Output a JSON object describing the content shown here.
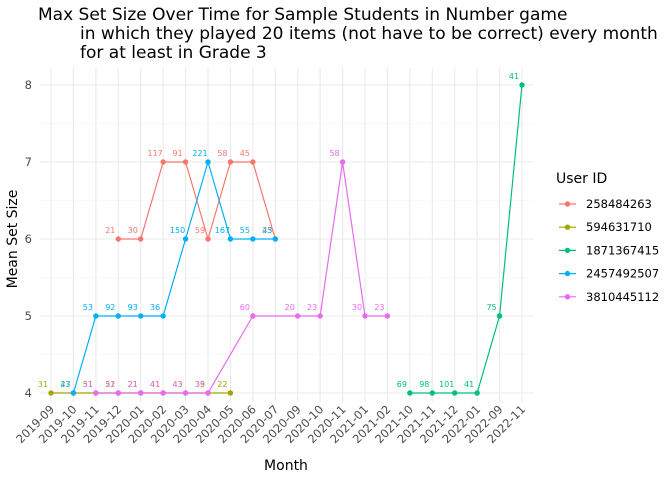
{
  "chart_data": {
    "type": "line",
    "title": [
      "Max Set Size Over Time for Sample Students in Number game",
      "in which they played 20 items (not have to be correct) every month",
      "for at least in Grade 3"
    ],
    "xlabel": "Month",
    "ylabel": "Mean Set Size",
    "categories": [
      "2019-09",
      "2019-10",
      "2019-11",
      "2019-12",
      "2020-01",
      "2020-02",
      "2020-03",
      "2020-04",
      "2020-05",
      "2020-06",
      "2020-07",
      "2020-09",
      "2020-10",
      "2020-11",
      "2021-01",
      "2021-02",
      "2021-10",
      "2021-11",
      "2021-12",
      "2022-01",
      "2022-09",
      "2022-11"
    ],
    "ylim": [
      3.85,
      8.2
    ],
    "yticks": [
      4,
      5,
      6,
      7,
      8
    ],
    "grid": true,
    "legend": {
      "title": "User ID",
      "position": "right"
    },
    "series": [
      {
        "name": "258484263",
        "color": "#F8766D",
        "points": [
          {
            "x": "2019-12",
            "y": 6,
            "label": "21"
          },
          {
            "x": "2020-01",
            "y": 6,
            "label": "30"
          },
          {
            "x": "2020-02",
            "y": 7,
            "label": "117"
          },
          {
            "x": "2020-03",
            "y": 7,
            "label": "91"
          },
          {
            "x": "2020-04",
            "y": 6,
            "label": "59"
          },
          {
            "x": "2020-05",
            "y": 7,
            "label": "58"
          },
          {
            "x": "2020-06",
            "y": 7,
            "label": "45"
          },
          {
            "x": "2020-07",
            "y": 6,
            "label": "25"
          }
        ]
      },
      {
        "name": "594631710",
        "color": "#A3A500",
        "points": [
          {
            "x": "2019-09",
            "y": 4,
            "label": "31"
          },
          {
            "x": "2019-10",
            "y": 4,
            "label": "27"
          },
          {
            "x": "2019-11",
            "y": 4,
            "label": "51"
          },
          {
            "x": "2019-12",
            "y": 4,
            "label": "51"
          },
          {
            "x": "2020-01",
            "y": 4,
            "label": "21"
          },
          {
            "x": "2020-02",
            "y": 4,
            "label": "41"
          },
          {
            "x": "2020-03",
            "y": 4,
            "label": "43"
          },
          {
            "x": "2020-04",
            "y": 4,
            "label": "39"
          },
          {
            "x": "2020-05",
            "y": 4,
            "label": "22"
          }
        ]
      },
      {
        "name": "1871367415",
        "color": "#00BF7D",
        "points": [
          {
            "x": "2021-10",
            "y": 4,
            "label": "69"
          },
          {
            "x": "2021-11",
            "y": 4,
            "label": "98"
          },
          {
            "x": "2021-12",
            "y": 4,
            "label": "101"
          },
          {
            "x": "2022-01",
            "y": 4,
            "label": "41"
          },
          {
            "x": "2022-09",
            "y": 5,
            "label": "75"
          },
          {
            "x": "2022-11",
            "y": 8,
            "label": "41"
          }
        ]
      },
      {
        "name": "2457492507",
        "color": "#00B0F6",
        "points": [
          {
            "x": "2019-10",
            "y": 4,
            "label": "43"
          },
          {
            "x": "2019-11",
            "y": 5,
            "label": "53"
          },
          {
            "x": "2019-12",
            "y": 5,
            "label": "92"
          },
          {
            "x": "2020-01",
            "y": 5,
            "label": "93"
          },
          {
            "x": "2020-02",
            "y": 5,
            "label": "36"
          },
          {
            "x": "2020-03",
            "y": 6,
            "label": "150"
          },
          {
            "x": "2020-04",
            "y": 7,
            "label": "221"
          },
          {
            "x": "2020-05",
            "y": 6,
            "label": "167"
          },
          {
            "x": "2020-06",
            "y": 6,
            "label": "55"
          },
          {
            "x": "2020-07",
            "y": 6,
            "label": "43"
          }
        ]
      },
      {
        "name": "3810445112",
        "color": "#E76BF3",
        "points": [
          {
            "x": "2019-11",
            "y": 4,
            "label": "31"
          },
          {
            "x": "2019-12",
            "y": 4,
            "label": "22"
          },
          {
            "x": "2020-01",
            "y": 4,
            "label": "21"
          },
          {
            "x": "2020-02",
            "y": 4,
            "label": "41"
          },
          {
            "x": "2020-03",
            "y": 4,
            "label": "43"
          },
          {
            "x": "2020-04",
            "y": 4,
            "label": "35"
          },
          {
            "x": "2020-06",
            "y": 5,
            "label": "60"
          },
          {
            "x": "2020-09",
            "y": 5,
            "label": "20"
          },
          {
            "x": "2020-10",
            "y": 5,
            "label": "23"
          },
          {
            "x": "2020-11",
            "y": 7,
            "label": "58"
          },
          {
            "x": "2021-01",
            "y": 5,
            "label": "30"
          },
          {
            "x": "2021-02",
            "y": 5,
            "label": "23"
          }
        ]
      }
    ]
  }
}
